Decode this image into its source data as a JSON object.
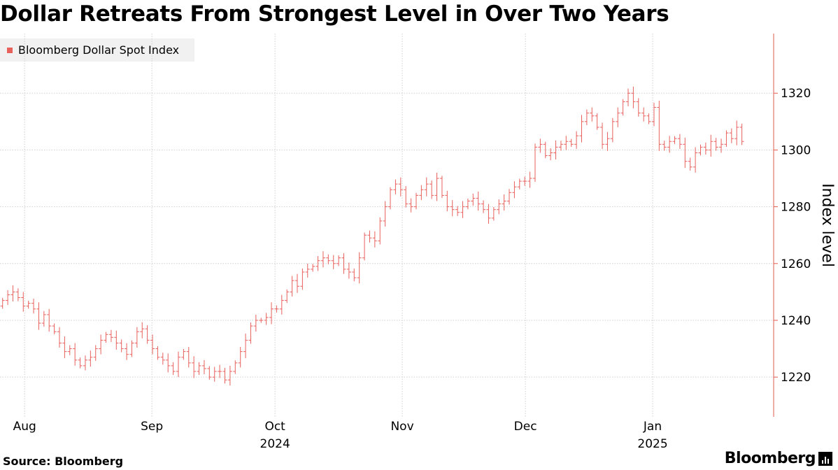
{
  "title": "Dollar Retreats From Strongest Level in Over Two Years",
  "source": "Source: Bloomberg",
  "brand": "Bloomberg",
  "colors": {
    "series": "#e8605c",
    "grid": "#d0d0d0",
    "axis": "#e05a4e"
  },
  "chart_data": {
    "type": "ohlc",
    "title": "Dollar Retreats From Strongest Level in Over Two Years",
    "ylabel": "Index level",
    "ylim": [
      1206,
      1341
    ],
    "yticks": [
      1220,
      1240,
      1260,
      1280,
      1300,
      1320
    ],
    "y_axis_side": "right",
    "grid": true,
    "legend": {
      "position": "top-left",
      "entries": [
        "Bloomberg Dollar Spot Index"
      ]
    },
    "x_range": [
      "2024-07-26",
      "2025-01-24"
    ],
    "x_ticks": [
      {
        "date": "2024-08-01",
        "label": "Aug"
      },
      {
        "date": "2024-09-01",
        "label": "Sep"
      },
      {
        "date": "2024-10-01",
        "label": "Oct",
        "year": "2024"
      },
      {
        "date": "2024-11-01",
        "label": "Nov"
      },
      {
        "date": "2024-12-01",
        "label": "Dec"
      },
      {
        "date": "2025-01-01",
        "label": "Jan",
        "year": "2025"
      }
    ],
    "series": [
      {
        "name": "Bloomberg Dollar Spot Index",
        "close": [
          1247,
          1249,
          1250,
          1248,
          1245,
          1246,
          1244,
          1239,
          1242,
          1238,
          1236,
          1232,
          1229,
          1230,
          1226,
          1224,
          1226,
          1227,
          1230,
          1233,
          1235,
          1234,
          1232,
          1230,
          1228,
          1232,
          1236,
          1237,
          1233,
          1230,
          1227,
          1226,
          1224,
          1222,
          1227,
          1229,
          1225,
          1222,
          1224,
          1223,
          1220,
          1222,
          1222,
          1219,
          1222,
          1225,
          1229,
          1233,
          1238,
          1240,
          1240,
          1241,
          1244,
          1244,
          1247,
          1250,
          1254,
          1252,
          1257,
          1258,
          1259,
          1261,
          1262,
          1261,
          1260,
          1262,
          1258,
          1257,
          1255,
          1262,
          1270,
          1269,
          1268,
          1275,
          1280,
          1286,
          1288,
          1286,
          1281,
          1280,
          1284,
          1286,
          1288,
          1284,
          1290,
          1284,
          1280,
          1279,
          1278,
          1280,
          1282,
          1283,
          1281,
          1279,
          1276,
          1279,
          1281,
          1282,
          1285,
          1287,
          1289,
          1289,
          1290,
          1301,
          1302,
          1298,
          1299,
          1301,
          1302,
          1303,
          1302,
          1305,
          1310,
          1313,
          1312,
          1308,
          1302,
          1304,
          1310,
          1313,
          1317,
          1320,
          1317,
          1313,
          1312,
          1310,
          1315,
          1302,
          1301,
          1303,
          1304,
          1302,
          1296,
          1294,
          1299,
          1301,
          1300,
          1303,
          1301,
          1302,
          1306,
          1304,
          1308,
          1303
        ]
      }
    ]
  }
}
